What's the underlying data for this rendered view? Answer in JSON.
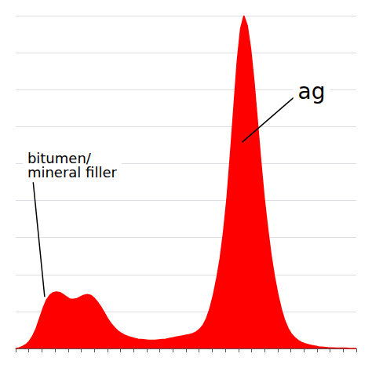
{
  "chart_data": {
    "type": "area",
    "x": [
      0.0,
      0.01,
      0.02,
      0.03,
      0.04,
      0.05,
      0.06,
      0.07,
      0.08,
      0.09,
      0.1,
      0.11,
      0.12,
      0.13,
      0.14,
      0.15,
      0.16,
      0.17,
      0.18,
      0.19,
      0.2,
      0.21,
      0.22,
      0.23,
      0.24,
      0.25,
      0.26,
      0.27,
      0.28,
      0.29,
      0.3,
      0.31,
      0.32,
      0.33,
      0.34,
      0.35,
      0.36,
      0.37,
      0.38,
      0.39,
      0.4,
      0.41,
      0.42,
      0.43,
      0.44,
      0.45,
      0.46,
      0.47,
      0.48,
      0.49,
      0.5,
      0.51,
      0.52,
      0.53,
      0.54,
      0.55,
      0.56,
      0.57,
      0.58,
      0.59,
      0.6,
      0.61,
      0.62,
      0.63,
      0.64,
      0.65,
      0.66,
      0.67,
      0.68,
      0.69,
      0.7,
      0.71,
      0.72,
      0.73,
      0.74,
      0.75,
      0.76,
      0.77,
      0.78,
      0.79,
      0.8,
      0.81,
      0.82,
      0.83,
      0.84,
      0.85,
      0.86,
      0.87,
      0.88,
      0.89,
      0.9,
      0.91,
      0.92,
      0.93,
      0.94,
      0.95,
      0.96,
      0.97,
      0.98,
      0.99,
      1.0
    ],
    "values": [
      0.0,
      0.002,
      0.006,
      0.012,
      0.022,
      0.038,
      0.06,
      0.09,
      0.12,
      0.145,
      0.16,
      0.168,
      0.17,
      0.168,
      0.162,
      0.155,
      0.148,
      0.148,
      0.15,
      0.155,
      0.16,
      0.162,
      0.16,
      0.152,
      0.14,
      0.125,
      0.108,
      0.09,
      0.075,
      0.063,
      0.053,
      0.046,
      0.04,
      0.036,
      0.033,
      0.03,
      0.028,
      0.027,
      0.026,
      0.025,
      0.025,
      0.025,
      0.026,
      0.027,
      0.028,
      0.03,
      0.032,
      0.034,
      0.036,
      0.038,
      0.04,
      0.042,
      0.045,
      0.05,
      0.058,
      0.07,
      0.09,
      0.12,
      0.16,
      0.21,
      0.27,
      0.35,
      0.45,
      0.58,
      0.72,
      0.86,
      0.96,
      1.0,
      0.97,
      0.9,
      0.8,
      0.68,
      0.56,
      0.45,
      0.36,
      0.28,
      0.215,
      0.162,
      0.118,
      0.084,
      0.06,
      0.043,
      0.032,
      0.024,
      0.018,
      0.014,
      0.011,
      0.009,
      0.007,
      0.005,
      0.004,
      0.003,
      0.002,
      0.002,
      0.001,
      0.001,
      0.001,
      0.001,
      0.0,
      0.0,
      0.0
    ],
    "color": "#FF0000",
    "xlim": [
      0,
      1
    ],
    "ylim": [
      0,
      1
    ],
    "xticks": [
      0,
      0.038461538461538464,
      0.07692307692307693,
      0.11538461538461539,
      0.15384615384615385,
      0.19230769230769232,
      0.23076923076923078,
      0.2692307692307692,
      0.3076923076923077,
      0.34615384615384615,
      0.38461538461538464,
      0.4230769230769231,
      0.46153846153846156,
      0.5,
      0.5384615384615384,
      0.5769230769230769,
      0.6153846153846154,
      0.6538461538461539,
      0.6923076923076923,
      0.7307692307692307,
      0.7692307692307693,
      0.8076923076923077,
      0.8461538461538461,
      0.8846153846153846,
      0.9230769230769231,
      0.9615384615384616,
      1
    ],
    "yticks": [
      0,
      0.1111111111111111,
      0.2222222222222222,
      0.3333333333333333,
      0.4444444444444444,
      0.5555555555555556,
      0.6666666666666666,
      0.7777777777777778,
      0.8888888888888888,
      1
    ],
    "tick_labels": false,
    "grid": true,
    "annotations": [
      {
        "text": "bitumen/\nmineral filler",
        "x": 0.085,
        "y": 0.155
      },
      {
        "text": "ag",
        "x": 0.665,
        "y": 0.62
      }
    ]
  }
}
